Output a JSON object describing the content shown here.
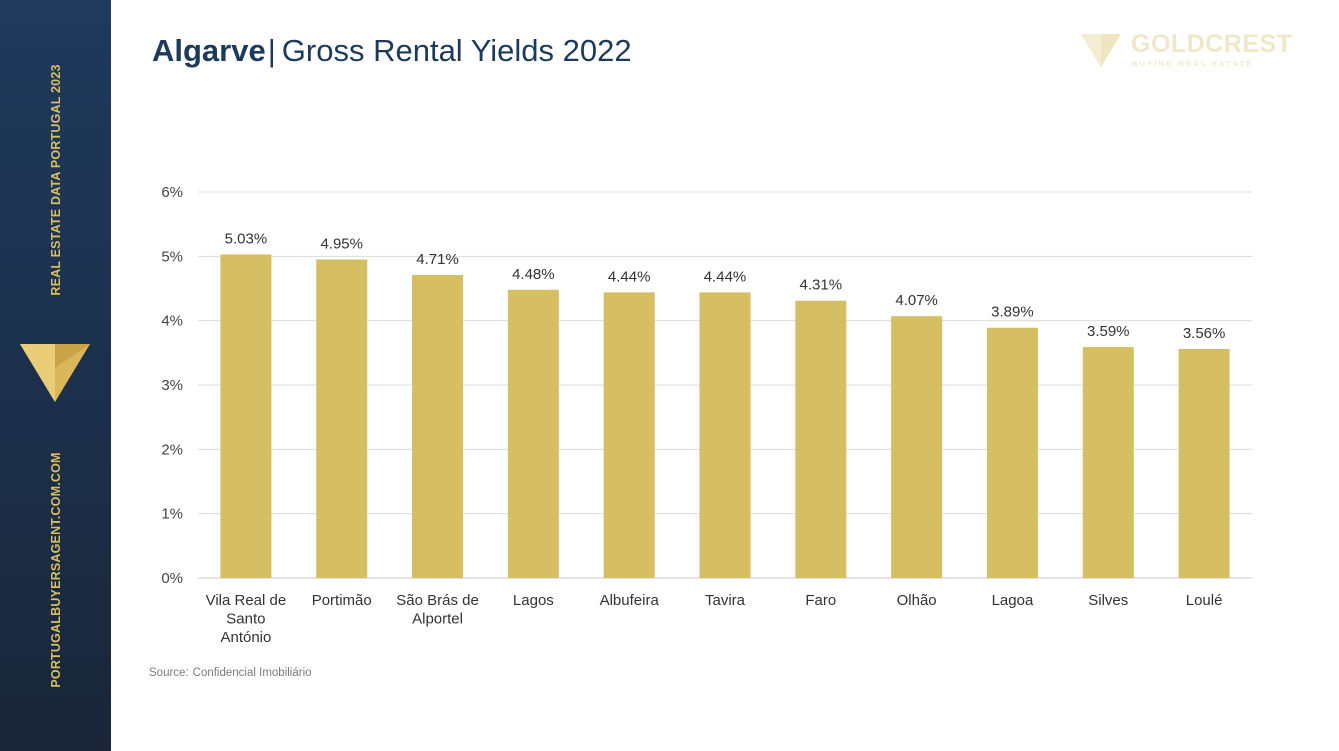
{
  "sidebar": {
    "top_text": "REAL ESTATE DATA PORTUGAL 2023",
    "bottom_text": "PORTUGALBUYERSAGENT.COM.COM",
    "logo_icon": "gold-triangle-icon"
  },
  "header": {
    "title_bold": "Algarve",
    "title_separator": "|",
    "title_rest": "Gross Rental Yields 2022"
  },
  "brand": {
    "name": "GOLDCREST",
    "tagline": "BUYING REAL ESTATE",
    "mark_icon": "goldcrest-triangle-icon"
  },
  "colors": {
    "sidebar": "#1f3a5c",
    "accent_gold": "#d9bf5f",
    "bar": "#d6be62",
    "title": "#1c3a5a"
  },
  "chart_data": {
    "type": "bar",
    "title": "Gross Rental Yields 2022",
    "xlabel": "",
    "ylabel": "",
    "categories": [
      [
        "Vila Real de",
        "Santo",
        "António"
      ],
      [
        "Portimão"
      ],
      [
        "São Brás de",
        "Alportel"
      ],
      [
        "Lagos"
      ],
      [
        "Albufeira"
      ],
      [
        "Tavira"
      ],
      [
        "Faro"
      ],
      [
        "Olhão"
      ],
      [
        "Lagoa"
      ],
      [
        "Silves"
      ],
      [
        "Loulé"
      ]
    ],
    "values": [
      5.03,
      4.95,
      4.71,
      4.48,
      4.44,
      4.44,
      4.31,
      4.07,
      3.89,
      3.59,
      3.56
    ],
    "value_labels": [
      "5.03%",
      "4.95%",
      "4.71%",
      "4.48%",
      "4.44%",
      "4.44%",
      "4.31%",
      "4.07%",
      "3.89%",
      "3.59%",
      "3.56%"
    ],
    "ylim": [
      0,
      6
    ],
    "yticks": [
      0,
      1,
      2,
      3,
      4,
      5,
      6
    ],
    "ytick_labels": [
      "0%",
      "1%",
      "2%",
      "3%",
      "4%",
      "5%",
      "6%"
    ],
    "grid": true,
    "legend": "none"
  },
  "source": {
    "label": "Source:",
    "text": "Confidencial Imobiliário"
  }
}
